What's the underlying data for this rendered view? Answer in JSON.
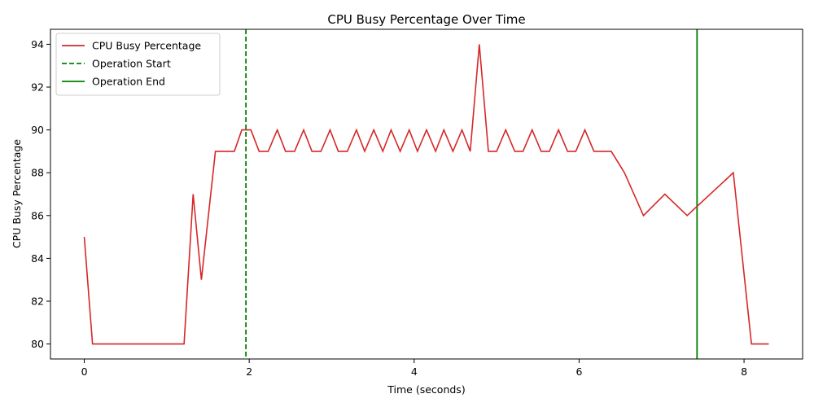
{
  "chart_data": {
    "type": "line",
    "title": "CPU Busy Percentage Over Time",
    "xlabel": "Time (seconds)",
    "ylabel": "CPU Busy Percentage",
    "xlim": [
      -0.41,
      8.71
    ],
    "ylim": [
      79.3,
      94.7
    ],
    "xticks": [
      0,
      2,
      4,
      6,
      8
    ],
    "yticks": [
      80,
      82,
      84,
      86,
      88,
      90,
      92,
      94
    ],
    "grid": false,
    "legend_position": "top-left",
    "series": [
      {
        "name": "CPU Busy Percentage",
        "color": "#d62728",
        "style": "solid",
        "x": [
          0.0,
          0.1,
          0.2,
          0.3,
          0.4,
          0.5,
          0.6,
          0.7,
          0.8,
          0.9,
          1.0,
          1.1,
          1.21,
          1.32,
          1.42,
          1.59,
          1.82,
          1.91,
          2.02,
          2.12,
          2.23,
          2.34,
          2.44,
          2.55,
          2.66,
          2.76,
          2.87,
          2.98,
          3.08,
          3.19,
          3.3,
          3.4,
          3.51,
          3.62,
          3.72,
          3.83,
          3.94,
          4.04,
          4.15,
          4.26,
          4.36,
          4.47,
          4.58,
          4.68,
          4.79,
          4.9,
          5.0,
          5.11,
          5.22,
          5.32,
          5.43,
          5.54,
          5.64,
          5.75,
          5.86,
          5.96,
          6.07,
          6.18,
          6.28,
          6.39,
          6.55,
          6.78,
          7.04,
          7.31,
          7.87,
          7.98,
          8.09,
          8.2,
          8.3
        ],
        "y": [
          85,
          80,
          80,
          80,
          80,
          80,
          80,
          80,
          80,
          80,
          80,
          80,
          80,
          87,
          83,
          89,
          89,
          90,
          90,
          89,
          89,
          90,
          89,
          89,
          90,
          89,
          89,
          90,
          89,
          89,
          90,
          89,
          90,
          89,
          90,
          89,
          90,
          89,
          90,
          89,
          90,
          89,
          90,
          89,
          94,
          89,
          89,
          90,
          89,
          89,
          90,
          89,
          89,
          90,
          89,
          89,
          90,
          89,
          89,
          89,
          88,
          86,
          87,
          86,
          88,
          84,
          80,
          80,
          80
        ]
      }
    ],
    "vlines": [
      {
        "name": "Operation Start",
        "x": 1.96,
        "color": "#008000",
        "style": "dashed"
      },
      {
        "name": "Operation End",
        "x": 7.43,
        "color": "#008000",
        "style": "solid"
      }
    ]
  }
}
